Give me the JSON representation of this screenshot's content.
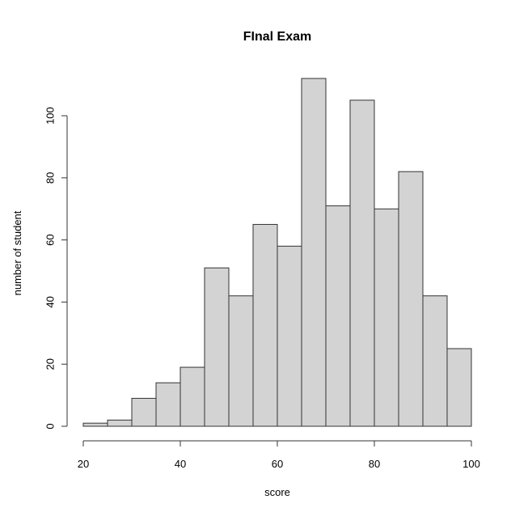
{
  "chart_data": {
    "type": "bar",
    "title": "FInal Exam",
    "xlabel": "score",
    "ylabel": "number of student",
    "bins": [
      {
        "start": 20,
        "end": 25,
        "value": 1
      },
      {
        "start": 25,
        "end": 30,
        "value": 2
      },
      {
        "start": 30,
        "end": 35,
        "value": 9
      },
      {
        "start": 35,
        "end": 40,
        "value": 14
      },
      {
        "start": 40,
        "end": 45,
        "value": 19
      },
      {
        "start": 45,
        "end": 50,
        "value": 51
      },
      {
        "start": 50,
        "end": 55,
        "value": 42
      },
      {
        "start": 55,
        "end": 60,
        "value": 65
      },
      {
        "start": 60,
        "end": 65,
        "value": 58
      },
      {
        "start": 65,
        "end": 70,
        "value": 112
      },
      {
        "start": 70,
        "end": 75,
        "value": 71
      },
      {
        "start": 75,
        "end": 80,
        "value": 105
      },
      {
        "start": 80,
        "end": 85,
        "value": 70
      },
      {
        "start": 85,
        "end": 90,
        "value": 82
      },
      {
        "start": 90,
        "end": 95,
        "value": 42
      },
      {
        "start": 95,
        "end": 100,
        "value": 25
      }
    ],
    "xlim": [
      20,
      100
    ],
    "ylim": [
      0,
      112
    ],
    "x_ticks": [
      20,
      40,
      60,
      80,
      100
    ],
    "y_ticks": [
      0,
      20,
      40,
      60,
      80,
      100
    ],
    "grid": false,
    "legend": "none",
    "bar_color": "#d3d3d3",
    "edge_color": "#333333"
  }
}
